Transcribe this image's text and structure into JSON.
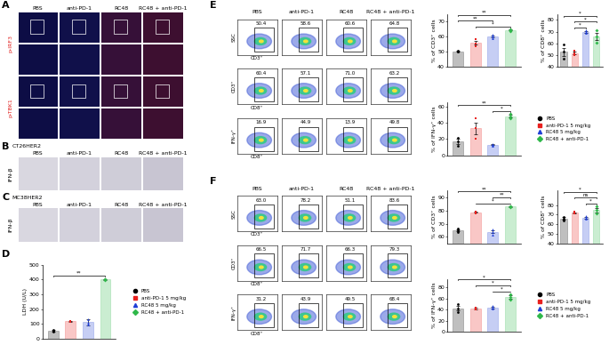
{
  "legend_labels": [
    "PBS",
    "anti-PD-1 5 mg/kg",
    "RC48 5 mg/kg",
    "RC48 + anti-PD-1"
  ],
  "image_panels": [
    {
      "panel": "A",
      "columns": [
        "PBS",
        "anti-PD-1",
        "RC48",
        "RC48 + anti-PD-1"
      ],
      "rows": [
        "p-IRF3",
        "p-TBK1"
      ]
    },
    {
      "panel": "B",
      "model": "CT26HER2",
      "columns": [
        "PBS",
        "anti-PD-1",
        "RC48",
        "RC48 + anti-PD-1"
      ],
      "row": "IFN-β"
    },
    {
      "panel": "C",
      "model": "MC38HER2",
      "columns": [
        "PBS",
        "anti-PD-1",
        "RC48",
        "RC48 + anti-PD-1"
      ],
      "row": "IFN-β"
    }
  ],
  "flow_panels": [
    {
      "panel": "E",
      "columns": [
        "PBS",
        "anti-PD-1",
        "RC48",
        "RC48 + anti-PD-1"
      ],
      "rows": [
        {
          "ylabel": "SSC",
          "xlabel": "CD3⁺",
          "gates": [
            50.4,
            58.6,
            60.6,
            64.8
          ]
        },
        {
          "ylabel": "CD3⁺",
          "xlabel": "CD8⁺",
          "gates": [
            60.4,
            57.1,
            71.0,
            63.2
          ]
        },
        {
          "ylabel": "IFN-γ⁺",
          "xlabel": "CD8⁺",
          "gates": [
            16.9,
            44.9,
            13.9,
            49.8
          ]
        }
      ]
    },
    {
      "panel": "F",
      "columns": [
        "PBS",
        "anti-PD-1",
        "RC48",
        "RC48 + anti-PD-1"
      ],
      "rows": [
        {
          "ylabel": "SSC",
          "xlabel": "CD3⁺",
          "gates": [
            63.0,
            78.2,
            51.1,
            83.6
          ]
        },
        {
          "ylabel": "CD3⁺",
          "xlabel": "CD8⁺",
          "gates": [
            66.5,
            71.7,
            66.3,
            79.3
          ]
        },
        {
          "ylabel": "IFN-γ⁺",
          "xlabel": "CD8⁺",
          "gates": [
            31.2,
            43.9,
            49.5,
            68.4
          ]
        }
      ]
    }
  ],
  "chart_data": [
    {
      "type": "bar",
      "panel": "D",
      "ylabel": "LDH (U/L)",
      "categories": [
        null,
        null,
        null,
        null
      ],
      "values": [
        55,
        118,
        112,
        400
      ],
      "errors": [
        5,
        4,
        20,
        5
      ],
      "points": [
        [
          48,
          55,
          60
        ],
        [
          115,
          118,
          121
        ],
        [
          95,
          110,
          130
        ],
        [
          396,
          400,
          404
        ]
      ],
      "colors": [
        "#000000",
        "#e8201e",
        "#1f3fd6",
        "#2fb84a"
      ],
      "ylim": [
        0,
        500
      ],
      "yticks": [
        0,
        100,
        200,
        300,
        400,
        500
      ],
      "tick_labels": "y",
      "annotations": [
        {
          "text": "**",
          "from": 0,
          "to": 3
        }
      ],
      "legend": "right"
    },
    {
      "type": "bar",
      "ylabel": "% of CD3⁺ cells",
      "categories": [
        null,
        null,
        null,
        null
      ],
      "values": [
        50.5,
        56,
        60.2,
        64.5
      ],
      "errors": [
        0.3,
        1.3,
        0.7,
        0.3
      ],
      "points": [
        [
          50,
          50.5,
          51
        ],
        [
          54,
          55.5,
          58.5
        ],
        [
          59,
          60,
          61.5
        ],
        [
          64,
          64.5,
          65
        ]
      ],
      "colors": [
        "#000000",
        "#e8201e",
        "#1f3fd6",
        "#2fb84a"
      ],
      "ylim": [
        40,
        75
      ],
      "yticks": [
        40,
        50,
        60,
        70
      ],
      "tick_labels": "y",
      "annotations": [
        {
          "text": "*",
          "from": 1,
          "to": 3
        },
        {
          "text": "**",
          "from": 0,
          "to": 2
        },
        {
          "text": "**",
          "from": 0,
          "to": 3
        }
      ]
    },
    {
      "type": "bar",
      "ylabel": "% of CD8⁺ cells",
      "categories": [
        null,
        null,
        null,
        null
      ],
      "values": [
        53,
        52,
        70,
        66
      ],
      "errors": [
        3.5,
        1.2,
        0.8,
        2.9
      ],
      "points": [
        [
          47,
          53,
          59
        ],
        [
          50,
          52,
          54
        ],
        [
          69,
          70,
          71.5
        ],
        [
          61,
          66,
          71
        ]
      ],
      "colors": [
        "#000000",
        "#e8201e",
        "#1f3fd6",
        "#2fb84a"
      ],
      "ylim": [
        40,
        85
      ],
      "yticks": [
        40,
        50,
        60,
        70,
        80
      ],
      "tick_labels": "y",
      "annotations": [
        {
          "text": "*",
          "from": 1,
          "to": 2
        },
        {
          "text": "*",
          "from": 1,
          "to": 3
        },
        {
          "text": "*",
          "from": 0,
          "to": 3
        }
      ]
    },
    {
      "type": "bar",
      "ylabel": "% of IFN-γ⁺ cells",
      "categories": [
        null,
        null,
        null,
        null
      ],
      "values": [
        17,
        33,
        13,
        48
      ],
      "errors": [
        3,
        7.5,
        0.6,
        1.7
      ],
      "points": [
        [
          12,
          17,
          22
        ],
        [
          20,
          33,
          46
        ],
        [
          12,
          13,
          14
        ],
        [
          45,
          48,
          51
        ]
      ],
      "colors": [
        "#000000",
        "#e8201e",
        "#1f3fd6",
        "#2fb84a"
      ],
      "ylim": [
        0,
        65
      ],
      "yticks": [
        0,
        20,
        40,
        60
      ],
      "tick_labels": "y",
      "annotations": [
        {
          "text": "*",
          "from": 2,
          "to": 3
        },
        {
          "text": "**",
          "from": 0,
          "to": 3
        }
      ],
      "legend": "right"
    },
    {
      "type": "bar",
      "ylabel": "% of CD3⁺ cells",
      "categories": [
        null,
        null,
        null,
        null
      ],
      "values": [
        65,
        78.5,
        64,
        83
      ],
      "errors": [
        0.9,
        0.3,
        1.2,
        0.3
      ],
      "points": [
        [
          63.5,
          65,
          66.5
        ],
        [
          78,
          78.5,
          79
        ],
        [
          62,
          64,
          66
        ],
        [
          82.5,
          83,
          83.5
        ]
      ],
      "colors": [
        "#000000",
        "#e8201e",
        "#1f3fd6",
        "#2fb84a"
      ],
      "ylim": [
        55,
        95
      ],
      "yticks": [
        60,
        70,
        80,
        90
      ],
      "tick_labels": "y",
      "annotations": [
        {
          "text": "*",
          "from": 1,
          "to": 3
        },
        {
          "text": "**",
          "from": 2,
          "to": 3
        },
        {
          "text": "**",
          "from": 0,
          "to": 3
        }
      ]
    },
    {
      "type": "bar",
      "ylabel": "% of CD8⁺ cells",
      "categories": [
        null,
        null,
        null,
        null
      ],
      "values": [
        66,
        72,
        67,
        75
      ],
      "errors": [
        1.2,
        0.6,
        0.9,
        2.3
      ],
      "points": [
        [
          64,
          66,
          68
        ],
        [
          71,
          72,
          73
        ],
        [
          65.5,
          67,
          68.5
        ],
        [
          71,
          75,
          79
        ]
      ],
      "colors": [
        "#000000",
        "#e8201e",
        "#1f3fd6",
        "#2fb84a"
      ],
      "ylim": [
        40,
        95
      ],
      "yticks": [
        40,
        50,
        60,
        70,
        80
      ],
      "tick_labels": "y",
      "annotations": [
        {
          "text": "*",
          "from": 2,
          "to": 3
        },
        {
          "text": "ns",
          "from": 1,
          "to": 3
        },
        {
          "text": "*",
          "from": 0,
          "to": 3
        }
      ]
    },
    {
      "type": "bar",
      "ylabel": "% of IFN-γ⁺ cells",
      "categories": [
        null,
        null,
        null,
        null
      ],
      "values": [
        42,
        42,
        44,
        63
      ],
      "errors": [
        4,
        1.2,
        1.7,
        2.9
      ],
      "points": [
        [
          35,
          42,
          49
        ],
        [
          40,
          42,
          44
        ],
        [
          41,
          44,
          47
        ],
        [
          58,
          63,
          68
        ]
      ],
      "colors": [
        "#000000",
        "#e8201e",
        "#1f3fd6",
        "#2fb84a"
      ],
      "ylim": [
        0,
        95
      ],
      "yticks": [
        0,
        20,
        40,
        60,
        80
      ],
      "tick_labels": "y",
      "annotations": [
        {
          "text": "*",
          "from": 2,
          "to": 3
        },
        {
          "text": "*",
          "from": 1,
          "to": 3
        },
        {
          "text": "*",
          "from": 0,
          "to": 3
        }
      ],
      "legend": "right"
    }
  ]
}
